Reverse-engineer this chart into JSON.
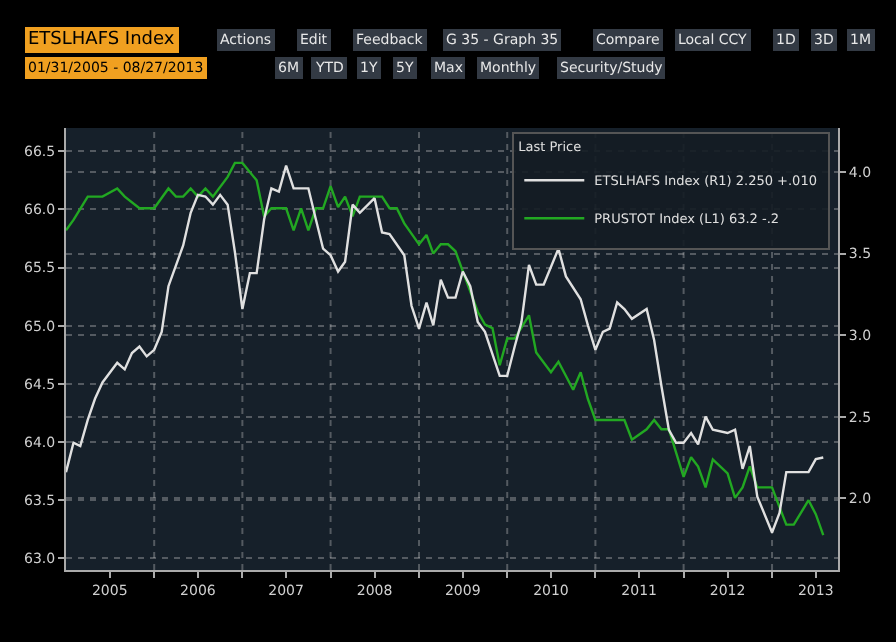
{
  "chart_data": {
    "type": "line",
    "title": "ETSLHAFS Index",
    "subtitle": "01/31/2005 - 08/27/2013",
    "annotations": [
      "Actions",
      "Edit",
      "Feedback",
      "G 35 - Graph 35",
      "Compare",
      "Local CCY",
      "1D",
      "3D",
      "1M",
      "6M",
      "YTD",
      "1Y",
      "5Y",
      "Max",
      "Monthly",
      "Security/Study"
    ],
    "legend_title": "Last Price",
    "legend": "top right",
    "grid": true,
    "line_style": "solid",
    "marker": "none",
    "xlim": [
      "2005-01",
      "2013-10"
    ],
    "xticks": [
      {
        "value": "2005-07",
        "label": "2005"
      },
      {
        "value": "2006-01",
        "label": null
      },
      {
        "value": "2006-07",
        "label": "2006"
      },
      {
        "value": "2007-01",
        "label": null
      },
      {
        "value": "2007-07",
        "label": "2007"
      },
      {
        "value": "2008-01",
        "label": null
      },
      {
        "value": "2008-07",
        "label": "2008"
      },
      {
        "value": "2009-01",
        "label": null
      },
      {
        "value": "2009-07",
        "label": "2009"
      },
      {
        "value": "2010-01",
        "label": null
      },
      {
        "value": "2010-07",
        "label": "2010"
      },
      {
        "value": "2011-01",
        "label": null
      },
      {
        "value": "2011-07",
        "label": "2011"
      },
      {
        "value": "2012-01",
        "label": null
      },
      {
        "value": "2012-07",
        "label": "2012"
      },
      {
        "value": "2013-01",
        "label": null
      },
      {
        "value": "2013-07",
        "label": "2013"
      }
    ],
    "ylim": [
      62.9,
      66.7
    ],
    "yticks": [
      {
        "value": 63,
        "label": "63.0"
      },
      {
        "value": 63.5,
        "label": "63.5"
      },
      {
        "value": 64,
        "label": "64.0"
      },
      {
        "value": 64.5,
        "label": "64.5"
      },
      {
        "value": 65,
        "label": "65.0"
      },
      {
        "value": 65.5,
        "label": "65.5"
      },
      {
        "value": 66,
        "label": "66.0"
      },
      {
        "value": 66.5,
        "label": "66.5"
      }
    ],
    "y2lim": [
      1.56,
      4.27
    ],
    "y2ticks": [
      {
        "value": 2,
        "label": "2.0"
      },
      {
        "value": 2.5,
        "label": "2.5"
      },
      {
        "value": 3,
        "label": "3.0"
      },
      {
        "value": 3.5,
        "label": "3.5"
      },
      {
        "value": 4,
        "label": "4.0"
      }
    ],
    "series": [
      {
        "name": "ETSLHAFS Index (R1) 2.250 +.010",
        "color": "#e0e0e0",
        "axis": "y2",
        "x": [
          "2005-01",
          "2005-02",
          "2005-03",
          "2005-04",
          "2005-05",
          "2005-06",
          "2005-08",
          "2005-09",
          "2005-10",
          "2005-11",
          "2005-12",
          "2006-01",
          "2006-02",
          "2006-03",
          "2006-05",
          "2006-06",
          "2006-07",
          "2006-08",
          "2006-09",
          "2006-10",
          "2006-11",
          "2006-12",
          "2007-01",
          "2007-02",
          "2007-03",
          "2007-04",
          "2007-05",
          "2007-06",
          "2007-07",
          "2007-08",
          "2007-10",
          "2007-11",
          "2007-12",
          "2008-01",
          "2008-02",
          "2008-03",
          "2008-04",
          "2008-05",
          "2008-07",
          "2008-08",
          "2008-09",
          "2008-11",
          "2008-12",
          "2009-01",
          "2009-02",
          "2009-03",
          "2009-04",
          "2009-05",
          "2009-06",
          "2009-07",
          "2009-08",
          "2009-09",
          "2009-10",
          "2009-12",
          "2010-01",
          "2010-02",
          "2010-03",
          "2010-04",
          "2010-05",
          "2010-06",
          "2010-08",
          "2010-09",
          "2010-11",
          "2010-12",
          "2011-01",
          "2011-02",
          "2011-03",
          "2011-04",
          "2011-05",
          "2011-06",
          "2011-08",
          "2011-09",
          "2011-10",
          "2011-11",
          "2011-12",
          "2012-01",
          "2012-02",
          "2012-03",
          "2012-04",
          "2012-05",
          "2012-07",
          "2012-08",
          "2012-09",
          "2012-10",
          "2012-11",
          "2013-01",
          "2013-02",
          "2013-03",
          "2013-04",
          "2013-06",
          "2013-07",
          "2013-08"
        ],
        "values": [
          2.16,
          2.34,
          2.32,
          2.48,
          2.61,
          2.71,
          2.83,
          2.79,
          2.89,
          2.93,
          2.87,
          2.91,
          3.02,
          3.3,
          3.55,
          3.75,
          3.86,
          3.85,
          3.8,
          3.86,
          3.8,
          3.51,
          3.16,
          3.38,
          3.38,
          3.71,
          3.9,
          3.88,
          4.04,
          3.9,
          3.9,
          3.71,
          3.53,
          3.49,
          3.39,
          3.45,
          3.8,
          3.75,
          3.84,
          3.63,
          3.62,
          3.49,
          3.18,
          3.04,
          3.2,
          3.06,
          3.34,
          3.23,
          3.23,
          3.39,
          3.3,
          3.08,
          3.02,
          2.75,
          2.75,
          2.93,
          3.08,
          3.43,
          3.31,
          3.31,
          3.53,
          3.36,
          3.22,
          3.06,
          2.91,
          3.02,
          3.04,
          3.2,
          3.16,
          3.1,
          3.16,
          2.97,
          2.69,
          2.42,
          2.34,
          2.34,
          2.4,
          2.33,
          2.5,
          2.42,
          2.4,
          2.42,
          2.18,
          2.32,
          2.01,
          1.79,
          1.91,
          2.16,
          2.16,
          2.16,
          2.24,
          2.25
        ]
      },
      {
        "name": "PRUSTOT Index (L1) 63.2 -.2",
        "color": "#22a822",
        "x": [
          "2005-01",
          "2005-02",
          "2005-04",
          "2005-06",
          "2005-08",
          "2005-09",
          "2005-11",
          "2006-01",
          "2006-03",
          "2006-04",
          "2006-05",
          "2006-06",
          "2006-07",
          "2006-08",
          "2006-09",
          "2006-11",
          "2006-12",
          "2007-01",
          "2007-03",
          "2007-04",
          "2007-05",
          "2007-07",
          "2007-08",
          "2007-09",
          "2007-10",
          "2007-11",
          "2007-12",
          "2008-01",
          "2008-02",
          "2008-03",
          "2008-04",
          "2008-05",
          "2008-08",
          "2008-09",
          "2008-10",
          "2008-11",
          "2009-01",
          "2009-02",
          "2009-03",
          "2009-04",
          "2009-05",
          "2009-06",
          "2009-07",
          "2009-09",
          "2009-10",
          "2009-11",
          "2009-12",
          "2010-01",
          "2010-02",
          "2010-04",
          "2010-05",
          "2010-07",
          "2010-08",
          "2010-10",
          "2010-11",
          "2010-12",
          "2011-01",
          "2011-05",
          "2011-06",
          "2011-08",
          "2011-09",
          "2011-10",
          "2011-11",
          "2012-01",
          "2012-02",
          "2012-03",
          "2012-04",
          "2012-05",
          "2012-07",
          "2012-08",
          "2012-09",
          "2012-10",
          "2012-11",
          "2013-01",
          "2013-02",
          "2013-03",
          "2013-04",
          "2013-06",
          "2013-07",
          "2013-08"
        ],
        "values": [
          65.82,
          65.91,
          66.11,
          66.11,
          66.18,
          66.11,
          66.01,
          66.01,
          66.18,
          66.11,
          66.11,
          66.18,
          66.11,
          66.18,
          66.11,
          66.28,
          66.4,
          66.4,
          66.25,
          65.94,
          66.01,
          66.01,
          65.82,
          66.01,
          65.82,
          66.01,
          66.01,
          66.2,
          66.02,
          66.11,
          65.94,
          66.11,
          66.11,
          66.01,
          66.01,
          65.88,
          65.7,
          65.78,
          65.62,
          65.7,
          65.7,
          65.64,
          65.47,
          65.12,
          65.01,
          64.98,
          64.66,
          64.89,
          64.89,
          65.09,
          64.77,
          64.6,
          64.69,
          64.45,
          64.6,
          64.37,
          64.19,
          64.19,
          64.02,
          64.11,
          64.19,
          64.11,
          64.11,
          63.7,
          63.87,
          63.79,
          63.61,
          63.85,
          63.73,
          63.52,
          63.61,
          63.79,
          63.61,
          63.61,
          63.44,
          63.29,
          63.29,
          63.5,
          63.38,
          63.2
        ]
      }
    ]
  }
}
